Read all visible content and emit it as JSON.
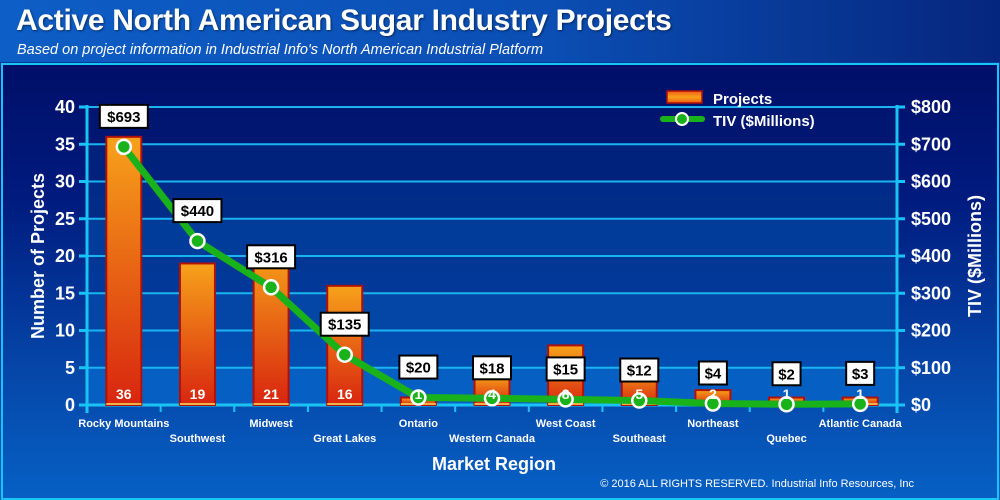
{
  "header": {
    "title": "Active North American Sugar Industry Projects",
    "subtitle": "Based on project information in Industrial Info's North American Industrial Platform"
  },
  "footer": {
    "copyright": "© 2016 ALL RIGHTS RESERVED. Industrial Info Resources, Inc"
  },
  "colors": {
    "background_dark": "#00116a",
    "frame_border": "#19c4f5",
    "grid": "#19b4f0",
    "bar_top": "#f7a21a",
    "bar_bottom": "#d8250f",
    "bar_border": "#b0100a",
    "line": "#19b21a",
    "marker_fill": "#19b21a",
    "marker_stroke": "#ffffff"
  },
  "chart_data": {
    "type": "bar",
    "title": "Active North American Sugar Industry Projects",
    "subtitle": "Based on project information in Industrial Info's North American Industrial Platform",
    "xlabel": "Market Region",
    "ylabel": "Number of Projects",
    "y2label": "TIV ($Millions)",
    "categories": [
      "Rocky Mountains",
      "Southwest",
      "Midwest",
      "Great Lakes",
      "Ontario",
      "Western Canada",
      "West Coast",
      "Southeast",
      "Northeast",
      "Quebec",
      "Atlantic Canada"
    ],
    "ylim": [
      0,
      40
    ],
    "yticks": [
      0,
      5,
      10,
      15,
      20,
      25,
      30,
      35,
      40
    ],
    "y2lim": [
      0,
      800
    ],
    "y2ticks": [
      "$0",
      "$100",
      "$200",
      "$300",
      "$400",
      "$500",
      "$600",
      "$700",
      "$800"
    ],
    "y2tick_values": [
      0,
      100,
      200,
      300,
      400,
      500,
      600,
      700,
      800
    ],
    "grid": true,
    "legend_position": "top-right",
    "series": [
      {
        "name": "Projects",
        "type": "bar",
        "axis": "left",
        "values": [
          36,
          19,
          21,
          16,
          1,
          4,
          8,
          5,
          2,
          1,
          1
        ],
        "labels": [
          "36",
          "19",
          "21",
          "16",
          "1",
          "4",
          "8",
          "5",
          "2",
          "1",
          "1"
        ]
      },
      {
        "name": "TIV ($Millions)",
        "type": "line",
        "axis": "right",
        "values": [
          693,
          440,
          316,
          135,
          20,
          18,
          15,
          12,
          4,
          2,
          3
        ],
        "labels": [
          "$693",
          "$440",
          "$316",
          "$135",
          "$20",
          "$18",
          "$15",
          "$12",
          "$4",
          "$2",
          "$3"
        ]
      }
    ]
  }
}
